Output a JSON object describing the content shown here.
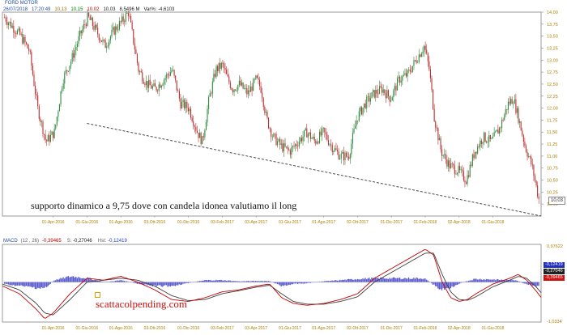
{
  "price_panel": {
    "instrument": "FORD MOTOR",
    "header": [
      {
        "text": "26/07/2018",
        "color": "#2050a0"
      },
      {
        "text": "17:20:49",
        "color": "#2050a0"
      },
      {
        "text": "10,13",
        "color": "#a07000"
      },
      {
        "text": "10,15",
        "color": "#008000"
      },
      {
        "text": "10,02",
        "color": "#c00000"
      },
      {
        "text": "10,03",
        "color": "#202020"
      },
      {
        "text": "8,5496 M",
        "color": "#202020"
      },
      {
        "text": "Var%: -4,6103",
        "color": "#202020"
      }
    ],
    "last_price_label": "10,03"
  },
  "macd_panel": {
    "title": "MACD",
    "params": "(12 , 26)",
    "values": [
      "-0,39465",
      "-0,27046",
      "-0,12419"
    ],
    "value_prefixes": [
      "",
      "S:",
      "Hst:"
    ],
    "value_colors": [
      "#c00000",
      "#202020",
      "#2040c0"
    ],
    "right_labels": [
      {
        "text": "-0,12419",
        "bg": "#2030c0"
      },
      {
        "text": "-0,27046",
        "bg": "#202020"
      },
      {
        "text": "-0,39465",
        "bg": "#d01010"
      }
    ]
  },
  "annotations": {
    "support_text": "supporto dinamico a 9,75 dove con candela idonea valutiamo il long",
    "watermark": "scattacolpending.com"
  },
  "colors": {
    "up": "#2e8b3e",
    "down": "#b83030",
    "axis_text": "#b08000",
    "hist": "#5a5ad0",
    "macd": "#c00000",
    "signal": "#404040"
  },
  "chart_data": [
    {
      "type": "candlestick",
      "title": "FORD MOTOR",
      "ylim": [
        9.75,
        14.0
      ],
      "y_ticks": [
        "14,00",
        "13,75",
        "13,50",
        "13,25",
        "13,00",
        "12,75",
        "12,50",
        "12,25",
        "12,00",
        "11,75",
        "11,50",
        "11,25",
        "11,00",
        "10,75",
        "10,50",
        "10,25",
        "10,00"
      ],
      "y_tick_values": [
        14.0,
        13.75,
        13.5,
        13.25,
        13.0,
        12.75,
        12.5,
        12.25,
        12.0,
        11.75,
        11.5,
        11.25,
        11.0,
        10.75,
        10.5,
        10.25,
        10.0
      ],
      "x_ticks": [
        "01-Apr-2016",
        "01-Giu-2016",
        "01-Ago-2016",
        "03-Ott-2016",
        "01-Dic-2016",
        "03-Feb-2017",
        "03-Apr-2017",
        "01-Giu-2017",
        "01-Ago-2017",
        "02-Ott-2017",
        "01-Dic-2017",
        "01-Feb-2018",
        "02-Apr-2018",
        "01-Giu-2018"
      ],
      "x_tick_months": [
        3,
        5,
        7,
        9,
        11,
        13,
        15,
        17,
        19,
        21,
        23,
        25,
        27,
        29
      ],
      "x_range_months": [
        0,
        31.85
      ],
      "price_path": [
        [
          0,
          13.9
        ],
        [
          0.5,
          13.7
        ],
        [
          1,
          13.5
        ],
        [
          1.5,
          13.2
        ],
        [
          2,
          12.0
        ],
        [
          2.5,
          11.3
        ],
        [
          3,
          11.5
        ],
        [
          3.5,
          12.6
        ],
        [
          4,
          13.0
        ],
        [
          4.5,
          13.5
        ],
        [
          5,
          13.9
        ],
        [
          5.5,
          13.6
        ],
        [
          6,
          13.3
        ],
        [
          6.5,
          13.6
        ],
        [
          7,
          13.8
        ],
        [
          7.4,
          14.0
        ],
        [
          7.7,
          13.4
        ],
        [
          8,
          12.8
        ],
        [
          8.5,
          12.5
        ],
        [
          9,
          12.4
        ],
        [
          9.5,
          12.6
        ],
        [
          10,
          12.8
        ],
        [
          10.5,
          12.1
        ],
        [
          11,
          12.0
        ],
        [
          11.5,
          11.5
        ],
        [
          11.8,
          11.3
        ],
        [
          12.2,
          12.2
        ],
        [
          12.6,
          12.8
        ],
        [
          13,
          12.9
        ],
        [
          13.3,
          12.6
        ],
        [
          13.6,
          12.4
        ],
        [
          14,
          12.5
        ],
        [
          14.5,
          12.3
        ],
        [
          15,
          12.6
        ],
        [
          15.3,
          12.4
        ],
        [
          15.6,
          11.8
        ],
        [
          16,
          11.4
        ],
        [
          16.5,
          11.2
        ],
        [
          17,
          11.1
        ],
        [
          17.5,
          11.3
        ],
        [
          18,
          11.5
        ],
        [
          18.5,
          11.3
        ],
        [
          19,
          11.5
        ],
        [
          19.5,
          11.2
        ],
        [
          20,
          11.0
        ],
        [
          20.5,
          11.0
        ],
        [
          21,
          11.8
        ],
        [
          21.5,
          12.1
        ],
        [
          22,
          12.3
        ],
        [
          22.5,
          12.4
        ],
        [
          23,
          12.2
        ],
        [
          23.5,
          12.6
        ],
        [
          24,
          12.7
        ],
        [
          24.5,
          13.0
        ],
        [
          25,
          13.3
        ],
        [
          25.3,
          12.8
        ],
        [
          25.6,
          11.8
        ],
        [
          26,
          11.1
        ],
        [
          26.5,
          10.8
        ],
        [
          27,
          10.7
        ],
        [
          27.5,
          10.5
        ],
        [
          28,
          11.1
        ],
        [
          28.5,
          11.4
        ],
        [
          29,
          11.3
        ],
        [
          29.5,
          11.6
        ],
        [
          30,
          12.1
        ],
        [
          30.3,
          12.2
        ],
        [
          30.6,
          11.8
        ],
        [
          31,
          11.2
        ],
        [
          31.4,
          10.8
        ],
        [
          31.7,
          10.3
        ],
        [
          31.85,
          10.03
        ]
      ],
      "trendline": {
        "start": [
          5,
          11.68
        ],
        "end": [
          31.85,
          9.75
        ],
        "style": "dashed"
      }
    },
    {
      "type": "line",
      "title": "MACD",
      "ylim": [
        -1.0334,
        0.97622
      ],
      "y_ticks": [
        "0,97622",
        "-1,0334"
      ],
      "x_ticks": [
        "01-Apr-2016",
        "01-Giu-2016",
        "01-Ago-2016",
        "03-Ott-2016",
        "01-Dic-2016",
        "03-Feb-2017",
        "03-Apr-2017",
        "01-Giu-2017",
        "01-Ago-2017",
        "02-Ott-2017",
        "01-Dic-2017",
        "01-Feb-2018",
        "02-Apr-2018",
        "01-Giu-2018"
      ],
      "series": [
        {
          "name": "MACD",
          "path": [
            [
              0,
              -0.1
            ],
            [
              1,
              -0.3
            ],
            [
              2,
              -0.7
            ],
            [
              2.5,
              -0.95
            ],
            [
              3,
              -0.8
            ],
            [
              4,
              -0.3
            ],
            [
              5,
              0.1
            ],
            [
              6,
              0.05
            ],
            [
              7,
              0.15
            ],
            [
              8,
              0.0
            ],
            [
              9,
              -0.2
            ],
            [
              10,
              -0.45
            ],
            [
              11,
              -0.5
            ],
            [
              12,
              -0.4
            ],
            [
              13,
              -0.25
            ],
            [
              14,
              -0.2
            ],
            [
              15,
              -0.1
            ],
            [
              15.8,
              -0.05
            ],
            [
              16.5,
              -0.4
            ],
            [
              17.2,
              -0.55
            ],
            [
              18,
              -0.6
            ],
            [
              19,
              -0.55
            ],
            [
              20,
              -0.45
            ],
            [
              21,
              -0.3
            ],
            [
              22,
              0.1
            ],
            [
              23,
              0.35
            ],
            [
              24,
              0.6
            ],
            [
              25,
              0.85
            ],
            [
              25.5,
              0.7
            ],
            [
              26,
              0.0
            ],
            [
              26.5,
              -0.4
            ],
            [
              27,
              -0.5
            ],
            [
              27.5,
              -0.45
            ],
            [
              28,
              -0.3
            ],
            [
              29,
              -0.05
            ],
            [
              30,
              0.1
            ],
            [
              30.5,
              0.2
            ],
            [
              31,
              0.05
            ],
            [
              31.5,
              -0.2
            ],
            [
              31.85,
              -0.39465
            ]
          ]
        },
        {
          "name": "S",
          "path": [
            [
              0,
              -0.05
            ],
            [
              1,
              -0.2
            ],
            [
              2,
              -0.55
            ],
            [
              2.5,
              -0.8
            ],
            [
              3,
              -0.85
            ],
            [
              4,
              -0.45
            ],
            [
              5,
              0.0
            ],
            [
              6,
              0.05
            ],
            [
              7,
              0.1
            ],
            [
              8,
              0.05
            ],
            [
              9,
              -0.1
            ],
            [
              10,
              -0.35
            ],
            [
              11,
              -0.48
            ],
            [
              12,
              -0.45
            ],
            [
              13,
              -0.3
            ],
            [
              14,
              -0.22
            ],
            [
              15,
              -0.13
            ],
            [
              15.8,
              -0.08
            ],
            [
              16.5,
              -0.3
            ],
            [
              17.2,
              -0.5
            ],
            [
              18,
              -0.57
            ],
            [
              19,
              -0.57
            ],
            [
              20,
              -0.5
            ],
            [
              21,
              -0.38
            ],
            [
              22,
              0.0
            ],
            [
              23,
              0.25
            ],
            [
              24,
              0.5
            ],
            [
              25,
              0.75
            ],
            [
              25.5,
              0.75
            ],
            [
              26,
              0.2
            ],
            [
              26.5,
              -0.25
            ],
            [
              27,
              -0.45
            ],
            [
              27.5,
              -0.47
            ],
            [
              28,
              -0.38
            ],
            [
              29,
              -0.12
            ],
            [
              30,
              0.05
            ],
            [
              30.5,
              0.15
            ],
            [
              31,
              0.1
            ],
            [
              31.5,
              -0.1
            ],
            [
              31.85,
              -0.27046
            ]
          ]
        },
        {
          "name": "Hst",
          "path": [
            [
              0,
              -0.05
            ],
            [
              1,
              -0.1
            ],
            [
              2,
              -0.15
            ],
            [
              2.5,
              -0.15
            ],
            [
              3,
              0.05
            ],
            [
              4,
              0.15
            ],
            [
              5,
              0.1
            ],
            [
              6,
              0.0
            ],
            [
              7,
              0.05
            ],
            [
              8,
              -0.05
            ],
            [
              9,
              -0.1
            ],
            [
              10,
              -0.1
            ],
            [
              11,
              -0.02
            ],
            [
              12,
              0.05
            ],
            [
              13,
              0.05
            ],
            [
              14,
              0.02
            ],
            [
              15,
              0.03
            ],
            [
              15.8,
              0.03
            ],
            [
              16.5,
              -0.1
            ],
            [
              17.2,
              -0.05
            ],
            [
              18,
              -0.03
            ],
            [
              19,
              0.02
            ],
            [
              20,
              0.05
            ],
            [
              21,
              0.08
            ],
            [
              22,
              0.1
            ],
            [
              23,
              0.1
            ],
            [
              24,
              0.1
            ],
            [
              25,
              0.1
            ],
            [
              25.5,
              -0.05
            ],
            [
              26,
              -0.2
            ],
            [
              26.5,
              -0.15
            ],
            [
              27,
              -0.05
            ],
            [
              27.5,
              0.02
            ],
            [
              28,
              0.08
            ],
            [
              29,
              0.07
            ],
            [
              30,
              0.05
            ],
            [
              30.5,
              0.05
            ],
            [
              31,
              -0.05
            ],
            [
              31.5,
              -0.1
            ],
            [
              31.85,
              -0.12419
            ]
          ]
        }
      ]
    }
  ]
}
